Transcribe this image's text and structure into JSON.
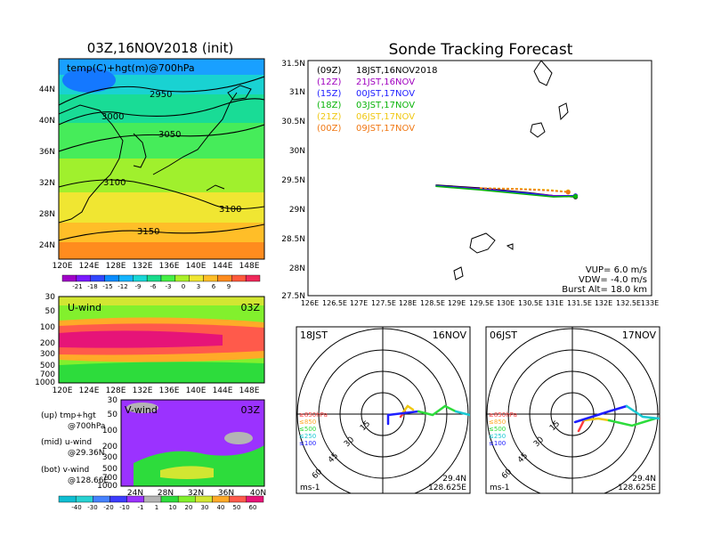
{
  "left_panel": {
    "title": "03Z,16NOV2018 (init)",
    "map_label": "temp(C)+hgt(m)@700hPa",
    "contour_labels": [
      "2950",
      "3000",
      "3050",
      "3100",
      "3100",
      "3150"
    ],
    "lat_ticks": [
      "44N",
      "40N",
      "36N",
      "32N",
      "28N",
      "24N"
    ],
    "lon_ticks": [
      "120E",
      "124E",
      "128E",
      "132E",
      "136E",
      "140E",
      "144E",
      "148E"
    ],
    "temp_colorbar": [
      "-21",
      "-18",
      "-15",
      "-12",
      "-9",
      "-6",
      "-3",
      "0",
      "3",
      "6",
      "9"
    ],
    "uwind": {
      "label": "U-wind",
      "time": "03Z",
      "levels": [
        "30",
        "50",
        "100",
        "200",
        "300",
        "500",
        "700",
        "1000"
      ]
    },
    "vwind": {
      "label": "V-wind",
      "time": "03Z",
      "levels": [
        "30",
        "50",
        "100",
        "200",
        "300",
        "500",
        "700",
        "1000"
      ],
      "lat_ticks": [
        "24N",
        "28N",
        "32N",
        "36N",
        "40N"
      ]
    },
    "wind_colorbar": [
      "-40",
      "-30",
      "-20",
      "-10",
      "-1",
      "1",
      "10",
      "20",
      "30",
      "40",
      "50",
      "60"
    ],
    "notes": [
      {
        "line1": "(up) tmp+hgt",
        "line2": "@700hPa"
      },
      {
        "line1": "(mid) u-wind",
        "line2": "@29.36N"
      },
      {
        "line1": "(bot) v-wind",
        "line2": "@128.66E"
      }
    ]
  },
  "colors": {
    "temp_scale": [
      "#a000c8",
      "#7a1aff",
      "#3246ff",
      "#0a8cff",
      "#14b4ff",
      "#19d7d7",
      "#19dc8c",
      "#46f046",
      "#aaf028",
      "#f0e632",
      "#ffbe28",
      "#ff8c1e",
      "#ff5a3c",
      "#f0285a"
    ],
    "wind_scale": [
      "#0fbed2",
      "#28d2d2",
      "#4682ff",
      "#3c3cff",
      "#9b32ff",
      "#b4b4b4",
      "#2ddc3c",
      "#82f02d",
      "#d2e632",
      "#ffaa28",
      "#ff5a4b",
      "#e61478"
    ],
    "series": {
      "09Z": "#000000",
      "12Z": "#a000c0",
      "15Z": "#1e1eff",
      "18Z": "#0ab40a",
      "21Z": "#f0c814",
      "00Z": "#f07814"
    }
  },
  "right_panel": {
    "title": "Sonde Tracking Forecast",
    "lat_ticks": [
      "31.5N",
      "31N",
      "30.5N",
      "30N",
      "29.5N",
      "29N",
      "28.5N",
      "28N",
      "27.5N"
    ],
    "lon_ticks": [
      "126E",
      "126.5E",
      "127E",
      "127.5E",
      "128E",
      "128.5E",
      "129E",
      "129.5E",
      "130E",
      "130.5E",
      "131E",
      "131.5E",
      "132E",
      "132.5E",
      "133E"
    ],
    "legend": [
      {
        "code": "(09Z)",
        "time": "18JST,16NOV2018"
      },
      {
        "code": "(12Z)",
        "time": "21JST,16NOV"
      },
      {
        "code": "(15Z)",
        "time": "00JST,17NOV"
      },
      {
        "code": "(18Z)",
        "time": "03JST,17NOV"
      },
      {
        "code": "(21Z)",
        "time": "06JST,17NOV"
      },
      {
        "code": "(00Z)",
        "time": "09JST,17NOV"
      }
    ],
    "info": {
      "vup": "VUP= 6.0 m/s",
      "vdw": "VDW= -4.0 m/s",
      "burst": "Burst Alt= 18.0 km"
    }
  },
  "chart_data": [
    {
      "type": "line",
      "title": "Sonde Tracking Forecast",
      "xlim": [
        126,
        133
      ],
      "ylim": [
        27.5,
        31.5
      ],
      "series": [
        {
          "name": "(09Z) 18JST,16NOV2018",
          "x": [
            128.6,
            129.5,
            130.5,
            131.0,
            131.45
          ],
          "y": [
            29.38,
            29.33,
            29.25,
            29.2,
            29.18
          ]
        },
        {
          "name": "(12Z) 21JST,16NOV",
          "x": [
            128.6,
            129.5,
            130.5,
            131.0,
            131.45
          ],
          "y": [
            29.37,
            29.32,
            29.24,
            29.2,
            29.2
          ]
        },
        {
          "name": "(15Z) 00JST,17NOV",
          "x": [
            128.6,
            129.5,
            130.5,
            131.0,
            131.45
          ],
          "y": [
            29.37,
            29.31,
            29.24,
            29.19,
            29.2
          ]
        },
        {
          "name": "(18Z) 03JST,17NOV",
          "x": [
            128.6,
            129.5,
            130.5,
            131.0,
            131.45
          ],
          "y": [
            29.36,
            29.3,
            29.22,
            29.18,
            29.19
          ]
        },
        {
          "name": "(21Z) 06JST,17NOV",
          "x": [
            129.5,
            130.3,
            130.9,
            131.3
          ],
          "y": [
            29.33,
            29.32,
            29.3,
            29.27
          ]
        },
        {
          "name": "(00Z) 09JST,17NOV",
          "x": [
            129.5,
            130.3,
            130.9,
            131.3
          ],
          "y": [
            29.33,
            29.31,
            29.29,
            29.26
          ]
        }
      ]
    },
    {
      "type": "hodograph",
      "left_label": "18JST",
      "right_label": "16NOV",
      "ring_labels": [
        "15",
        "30",
        "45",
        "60"
      ],
      "unit": "ms-1",
      "lat": "29.4N",
      "lon": "128.625E",
      "pressure_legend": [
        "≥850hPa",
        "≤850",
        "≤500",
        "≤250",
        "≤100"
      ]
    },
    {
      "type": "hodograph",
      "left_label": "06JST",
      "right_label": "17NOV",
      "ring_labels": [
        "15",
        "30",
        "45",
        "60"
      ],
      "unit": "ms-1",
      "lat": "29.4N",
      "lon": "128.625E",
      "pressure_legend": [
        "≥850hPa",
        "≤850",
        "≤500",
        "≤250",
        "≤100"
      ]
    }
  ]
}
